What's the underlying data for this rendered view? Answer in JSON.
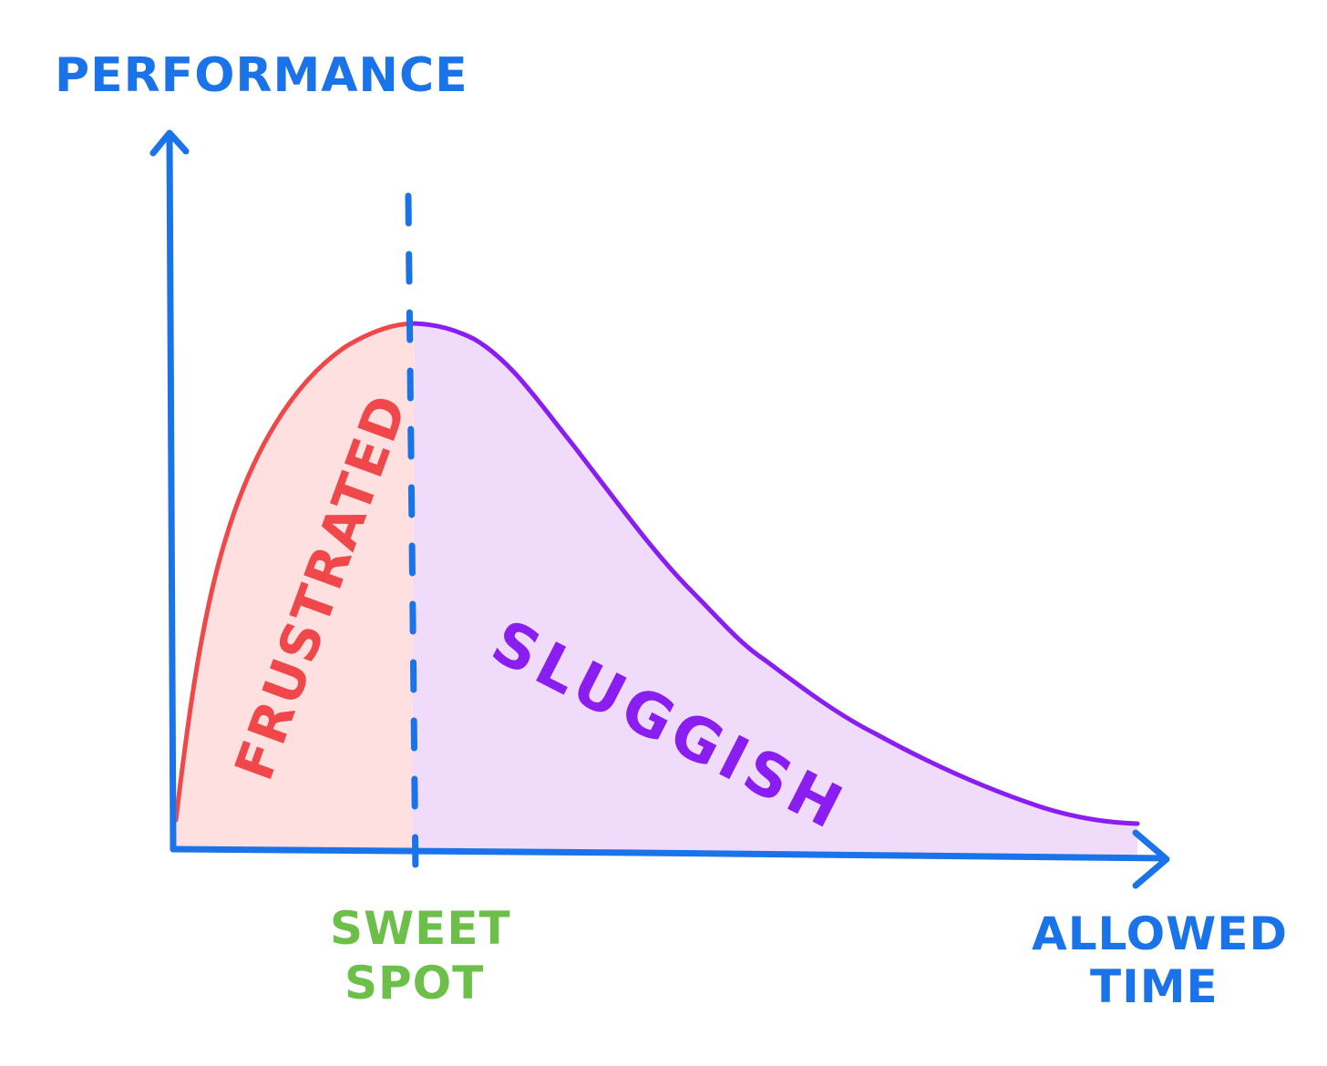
{
  "axes": {
    "y_label": "PERFORMANCE",
    "x_label_line1": "ALLOWED",
    "x_label_line2": "TIME"
  },
  "regions": {
    "left_label": "FRUSTRATED",
    "right_label": "SLUGGISH"
  },
  "marker": {
    "label_line1": "SWEET",
    "label_line2": "SPOT"
  },
  "colors": {
    "axis": "#1a73e8",
    "frustrated_line": "#f0484a",
    "frustrated_fill": "#fde0df",
    "sluggish_line": "#8a1ef0",
    "sluggish_fill": "#f0dcfa",
    "sweet_spot": "#6cc04a"
  }
}
